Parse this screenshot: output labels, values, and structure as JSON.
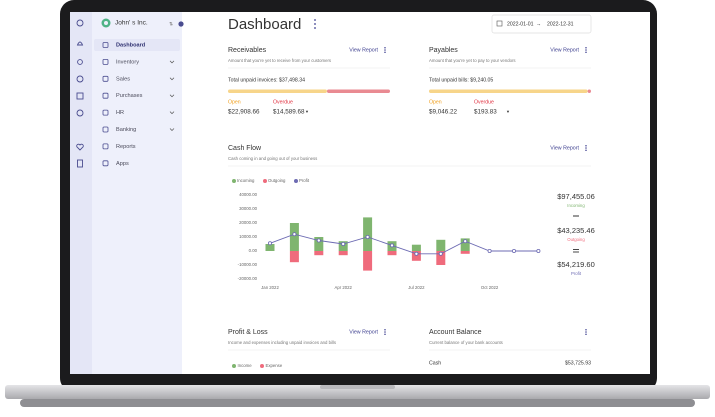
{
  "sidebar": {
    "company": "John' s Inc.",
    "menu": [
      {
        "label": "Dashboard",
        "active": true
      },
      {
        "label": "Inventory",
        "expandable": true
      },
      {
        "label": "Sales",
        "expandable": true
      },
      {
        "label": "Purchases",
        "expandable": true
      },
      {
        "label": "HR",
        "expandable": true
      },
      {
        "label": "Banking",
        "expandable": true
      },
      {
        "label": "Reports"
      },
      {
        "label": "Apps"
      }
    ]
  },
  "header": {
    "title": "Dashboard",
    "date_from": "2022-01-01",
    "date_to": "2022-12-31"
  },
  "receivables": {
    "title": "Receivables",
    "view_report": "View Report",
    "subtitle": "Amount that you're yet to receive from your customers",
    "total": "Total unpaid invoices: $37,498.34",
    "open_label": "Open",
    "overdue_label": "Overdue",
    "open_value": "$22,908.66",
    "overdue_value": "$14,589.68"
  },
  "payables": {
    "title": "Payables",
    "view_report": "View Report",
    "subtitle": "Amount that you're yet to pay to your vendors",
    "total": "Total unpaid bills: $9,240.05",
    "open_label": "Open",
    "overdue_label": "Overdue",
    "open_value": "$9,046.22",
    "overdue_value": "$193.83"
  },
  "cash_flow": {
    "title": "Cash Flow",
    "view_report": "View Report",
    "subtitle": "Cash coming in and going out of your business",
    "chart": {
      "type": "bar",
      "categories": [
        "Jan 2022",
        null,
        null,
        "Apr 2022",
        null,
        null,
        "Jul 2022",
        null,
        null,
        "Oct 2022",
        null,
        null
      ],
      "series": [
        {
          "name": "Incoming",
          "color": "#7fb56f",
          "values": [
            5000,
            20000,
            10000,
            7000,
            24000,
            7000,
            4500,
            8000,
            9000,
            0,
            0,
            0
          ]
        },
        {
          "name": "Outgoing",
          "color": "#ef6b7c",
          "values": [
            0,
            -8000,
            -3000,
            -3000,
            -14000,
            -3000,
            -7000,
            -10000,
            -2000,
            0,
            0,
            0
          ]
        },
        {
          "name": "Profit",
          "color": "#6d6bb3",
          "type": "line",
          "values": [
            5500,
            12000,
            7500,
            5000,
            10000,
            4000,
            -2000,
            -2000,
            7000,
            0,
            0,
            0
          ]
        }
      ],
      "ylim": [
        -20000,
        40000
      ],
      "yticks": [
        {
          "value": 40000,
          "label": "40000.00"
        },
        {
          "value": 30000,
          "label": "30000.00"
        },
        {
          "value": 20000,
          "label": "20000.00"
        },
        {
          "value": 10000,
          "label": "10000.00"
        },
        {
          "value": 0,
          "label": "0.00"
        },
        {
          "value": -10000,
          "label": "-10000.00"
        },
        {
          "value": -20000,
          "label": "-20000.00"
        }
      ]
    },
    "incoming_total": "$97,455.06",
    "outgoing_total": "$43,235.46",
    "profit_total": "$54,219.60"
  },
  "profit_loss": {
    "title": "Profit & Loss",
    "view_report": "View Report",
    "subtitle": "Income and expenses including unpaid invoices and bills",
    "legend": [
      "Income",
      "Expense"
    ]
  },
  "account_balance": {
    "title": "Account Balance",
    "subtitle": "Current balance of your bank accounts",
    "rows": [
      [
        "Cash",
        "$53,725.93"
      ]
    ]
  }
}
